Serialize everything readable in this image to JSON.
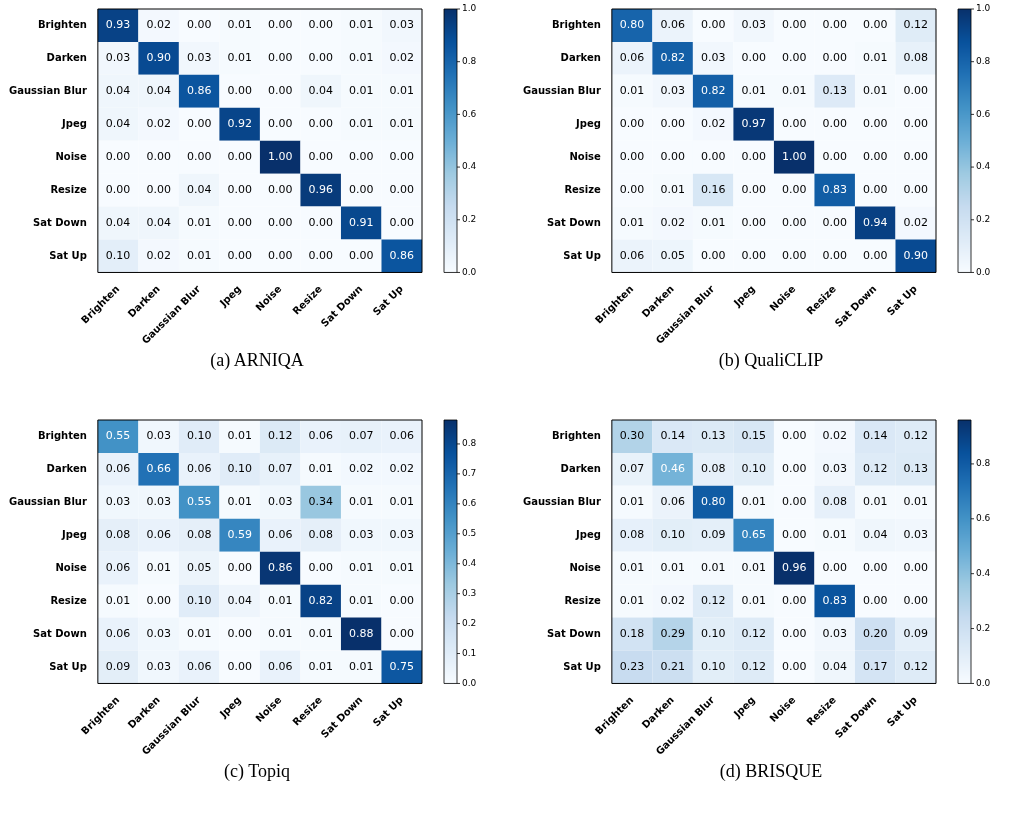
{
  "chart_data": [
    {
      "type": "heatmap",
      "title": "(a) ARNIQA",
      "data_labels": true,
      "clim": [
        0,
        1
      ],
      "cticks": [
        {
          "value": 0,
          "label": "0.0"
        },
        {
          "value": 0.2,
          "label": "0.2"
        },
        {
          "value": 0.4,
          "label": "0.4"
        },
        {
          "value": 0.6,
          "label": "0.6"
        },
        {
          "value": 0.8,
          "label": "0.8"
        },
        {
          "value": 1,
          "label": "1.0"
        }
      ],
      "categories": [
        "Brighten",
        "Darken",
        "Gaussian Blur",
        "Jpeg",
        "Noise",
        "Resize",
        "Sat Down",
        "Sat Up"
      ],
      "y_categories": [
        "Brighten",
        "Darken",
        "Gaussian Blur",
        "Jpeg",
        "Noise",
        "Resize",
        "Sat Down",
        "Sat Up"
      ],
      "cells": [
        [
          0.93,
          0.02,
          0,
          0.01,
          0,
          0,
          0.01,
          0.03
        ],
        [
          0.03,
          0.9,
          0.03,
          0.01,
          0,
          0,
          0.01,
          0.02
        ],
        [
          0.04,
          0.04,
          0.86,
          0,
          0,
          0.04,
          0.01,
          0.01
        ],
        [
          0.04,
          0.02,
          0,
          0.92,
          0,
          0,
          0.01,
          0.01
        ],
        [
          0,
          0,
          0,
          0,
          1,
          0,
          0,
          0
        ],
        [
          0,
          0,
          0.04,
          0,
          0,
          0.96,
          0,
          0
        ],
        [
          0.04,
          0.04,
          0.01,
          0,
          0,
          0,
          0.91,
          0
        ],
        [
          0.1,
          0.02,
          0.01,
          0,
          0,
          0,
          0,
          0.86
        ]
      ],
      "cell_labels": [
        [
          "0.93",
          "0.02",
          "0.00",
          "0.01",
          "0.00",
          "0.00",
          "0.01",
          "0.03"
        ],
        [
          "0.03",
          "0.90",
          "0.03",
          "0.01",
          "0.00",
          "0.00",
          "0.01",
          "0.02"
        ],
        [
          "0.04",
          "0.04",
          "0.86",
          "0.00",
          "0.00",
          "0.04",
          "0.01",
          "0.01"
        ],
        [
          "0.04",
          "0.02",
          "0.00",
          "0.92",
          "0.00",
          "0.00",
          "0.01",
          "0.01"
        ],
        [
          "0.00",
          "0.00",
          "0.00",
          "0.00",
          "1.00",
          "0.00",
          "0.00",
          "0.00"
        ],
        [
          "0.00",
          "0.00",
          "0.04",
          "0.00",
          "0.00",
          "0.96",
          "0.00",
          "0.00"
        ],
        [
          "0.04",
          "0.04",
          "0.01",
          "0.00",
          "0.00",
          "0.00",
          "0.91",
          "0.00"
        ],
        [
          "0.10",
          "0.02",
          "0.01",
          "0.00",
          "0.00",
          "0.00",
          "0.00",
          "0.86"
        ]
      ]
    },
    {
      "type": "heatmap",
      "title": "(b) QualiCLIP",
      "data_labels": true,
      "clim": [
        0,
        1
      ],
      "cticks": [
        {
          "value": 0,
          "label": "0.0"
        },
        {
          "value": 0.2,
          "label": "0.2"
        },
        {
          "value": 0.4,
          "label": "0.4"
        },
        {
          "value": 0.6,
          "label": "0.6"
        },
        {
          "value": 0.8,
          "label": "0.8"
        },
        {
          "value": 1,
          "label": "1.0"
        }
      ],
      "categories": [
        "Brighten",
        "Darken",
        "Gaussian Blur",
        "Jpeg",
        "Noise",
        "Resize",
        "Sat Down",
        "Sat Up"
      ],
      "y_categories": [
        "Brighten",
        "Darken",
        "Gaussian Blur",
        "Jpeg",
        "Noise",
        "Resize",
        "Sat Down",
        "Sat Up"
      ],
      "cells": [
        [
          0.8,
          0.06,
          0,
          0.03,
          0,
          0,
          0,
          0.12
        ],
        [
          0.06,
          0.82,
          0.03,
          0,
          0,
          0,
          0.01,
          0.08
        ],
        [
          0.01,
          0.03,
          0.82,
          0.01,
          0.01,
          0.13,
          0.01,
          0
        ],
        [
          0,
          0,
          0.02,
          0.97,
          0,
          0,
          0,
          0
        ],
        [
          0,
          0,
          0,
          0,
          1,
          0,
          0,
          0
        ],
        [
          0,
          0.01,
          0.16,
          0,
          0,
          0.83,
          0,
          0
        ],
        [
          0.01,
          0.02,
          0.01,
          0,
          0,
          0,
          0.94,
          0.02
        ],
        [
          0.06,
          0.05,
          0,
          0,
          0,
          0,
          0,
          0.9
        ]
      ],
      "cell_labels": [
        [
          "0.80",
          "0.06",
          "0.00",
          "0.03",
          "0.00",
          "0.00",
          "0.00",
          "0.12"
        ],
        [
          "0.06",
          "0.82",
          "0.03",
          "0.00",
          "0.00",
          "0.00",
          "0.01",
          "0.08"
        ],
        [
          "0.01",
          "0.03",
          "0.82",
          "0.01",
          "0.01",
          "0.13",
          "0.01",
          "0.00"
        ],
        [
          "0.00",
          "0.00",
          "0.02",
          "0.97",
          "0.00",
          "0.00",
          "0.00",
          "0.00"
        ],
        [
          "0.00",
          "0.00",
          "0.00",
          "0.00",
          "1.00",
          "0.00",
          "0.00",
          "0.00"
        ],
        [
          "0.00",
          "0.01",
          "0.16",
          "0.00",
          "0.00",
          "0.83",
          "0.00",
          "0.00"
        ],
        [
          "0.01",
          "0.02",
          "0.01",
          "0.00",
          "0.00",
          "0.00",
          "0.94",
          "0.02"
        ],
        [
          "0.06",
          "0.05",
          "0.00",
          "0.00",
          "0.00",
          "0.00",
          "0.00",
          "0.90"
        ]
      ]
    },
    {
      "type": "heatmap",
      "title": "(c) Topiq",
      "data_labels": true,
      "clim": [
        0,
        0.88
      ],
      "cticks": [
        {
          "value": 0,
          "label": "0.0"
        },
        {
          "value": 0.1,
          "label": "0.1"
        },
        {
          "value": 0.2,
          "label": "0.2"
        },
        {
          "value": 0.3,
          "label": "0.3"
        },
        {
          "value": 0.4,
          "label": "0.4"
        },
        {
          "value": 0.5,
          "label": "0.5"
        },
        {
          "value": 0.6,
          "label": "0.6"
        },
        {
          "value": 0.7,
          "label": "0.7"
        },
        {
          "value": 0.8,
          "label": "0.8"
        }
      ],
      "categories": [
        "Brighten",
        "Darken",
        "Gaussian Blur",
        "Jpeg",
        "Noise",
        "Resize",
        "Sat Down",
        "Sat Up"
      ],
      "y_categories": [
        "Brighten",
        "Darken",
        "Gaussian Blur",
        "Jpeg",
        "Noise",
        "Resize",
        "Sat Down",
        "Sat Up"
      ],
      "cells": [
        [
          0.55,
          0.03,
          0.1,
          0.01,
          0.12,
          0.06,
          0.07,
          0.06
        ],
        [
          0.06,
          0.66,
          0.06,
          0.1,
          0.07,
          0.01,
          0.02,
          0.02
        ],
        [
          0.03,
          0.03,
          0.55,
          0.01,
          0.03,
          0.34,
          0.01,
          0.01
        ],
        [
          0.08,
          0.06,
          0.08,
          0.59,
          0.06,
          0.08,
          0.03,
          0.03
        ],
        [
          0.06,
          0.01,
          0.05,
          0,
          0.86,
          0,
          0.01,
          0.01
        ],
        [
          0.01,
          0,
          0.1,
          0.04,
          0.01,
          0.82,
          0.01,
          0
        ],
        [
          0.06,
          0.03,
          0.01,
          0,
          0.01,
          0.01,
          0.88,
          0
        ],
        [
          0.09,
          0.03,
          0.06,
          0,
          0.06,
          0.01,
          0.01,
          0.75
        ]
      ],
      "cell_labels": [
        [
          "0.55",
          "0.03",
          "0.10",
          "0.01",
          "0.12",
          "0.06",
          "0.07",
          "0.06"
        ],
        [
          "0.06",
          "0.66",
          "0.06",
          "0.10",
          "0.07",
          "0.01",
          "0.02",
          "0.02"
        ],
        [
          "0.03",
          "0.03",
          "0.55",
          "0.01",
          "0.03",
          "0.34",
          "0.01",
          "0.01"
        ],
        [
          "0.08",
          "0.06",
          "0.08",
          "0.59",
          "0.06",
          "0.08",
          "0.03",
          "0.03"
        ],
        [
          "0.06",
          "0.01",
          "0.05",
          "0.00",
          "0.86",
          "0.00",
          "0.01",
          "0.01"
        ],
        [
          "0.01",
          "0.00",
          "0.10",
          "0.04",
          "0.01",
          "0.82",
          "0.01",
          "0.00"
        ],
        [
          "0.06",
          "0.03",
          "0.01",
          "0.00",
          "0.01",
          "0.01",
          "0.88",
          "0.00"
        ],
        [
          "0.09",
          "0.03",
          "0.06",
          "0.00",
          "0.06",
          "0.01",
          "0.01",
          "0.75"
        ]
      ]
    },
    {
      "type": "heatmap",
      "title": "(d) BRISQUE",
      "data_labels": true,
      "clim": [
        0,
        0.96
      ],
      "cticks": [
        {
          "value": 0,
          "label": "0.0"
        },
        {
          "value": 0.2,
          "label": "0.2"
        },
        {
          "value": 0.4,
          "label": "0.4"
        },
        {
          "value": 0.6,
          "label": "0.6"
        },
        {
          "value": 0.8,
          "label": "0.8"
        }
      ],
      "categories": [
        "Brighten",
        "Darken",
        "Gaussian Blur",
        "Jpeg",
        "Noise",
        "Resize",
        "Sat Down",
        "Sat Up"
      ],
      "y_categories": [
        "Brighten",
        "Darken",
        "Gaussian Blur",
        "Jpeg",
        "Noise",
        "Resize",
        "Sat Down",
        "Sat Up"
      ],
      "cells": [
        [
          0.3,
          0.14,
          0.13,
          0.15,
          0,
          0.02,
          0.14,
          0.12
        ],
        [
          0.07,
          0.46,
          0.08,
          0.1,
          0,
          0.03,
          0.12,
          0.13
        ],
        [
          0.01,
          0.06,
          0.8,
          0.01,
          0,
          0.08,
          0.01,
          0.01
        ],
        [
          0.08,
          0.1,
          0.09,
          0.65,
          0,
          0.01,
          0.04,
          0.03
        ],
        [
          0.01,
          0.01,
          0.01,
          0.01,
          0.96,
          0,
          0,
          0
        ],
        [
          0.01,
          0.02,
          0.12,
          0.01,
          0,
          0.83,
          0,
          0
        ],
        [
          0.18,
          0.29,
          0.1,
          0.12,
          0,
          0.03,
          0.2,
          0.09
        ],
        [
          0.23,
          0.21,
          0.1,
          0.12,
          0,
          0.04,
          0.17,
          0.12
        ]
      ],
      "cell_labels": [
        [
          "0.30",
          "0.14",
          "0.13",
          "0.15",
          "0.00",
          "0.02",
          "0.14",
          "0.12"
        ],
        [
          "0.07",
          "0.46",
          "0.08",
          "0.10",
          "0.00",
          "0.03",
          "0.12",
          "0.13"
        ],
        [
          "0.01",
          "0.06",
          "0.80",
          "0.01",
          "0.00",
          "0.08",
          "0.01",
          "0.01"
        ],
        [
          "0.08",
          "0.10",
          "0.09",
          "0.65",
          "0.00",
          "0.01",
          "0.04",
          "0.03"
        ],
        [
          "0.01",
          "0.01",
          "0.01",
          "0.01",
          "0.96",
          "0.00",
          "0.00",
          "0.00"
        ],
        [
          "0.01",
          "0.02",
          "0.12",
          "0.01",
          "0.00",
          "0.83",
          "0.00",
          "0.00"
        ],
        [
          "0.18",
          "0.29",
          "0.10",
          "0.12",
          "0.00",
          "0.03",
          "0.20",
          "0.09"
        ],
        [
          "0.23",
          "0.21",
          "0.10",
          "0.12",
          "0.00",
          "0.04",
          "0.17",
          "0.12"
        ]
      ]
    }
  ]
}
